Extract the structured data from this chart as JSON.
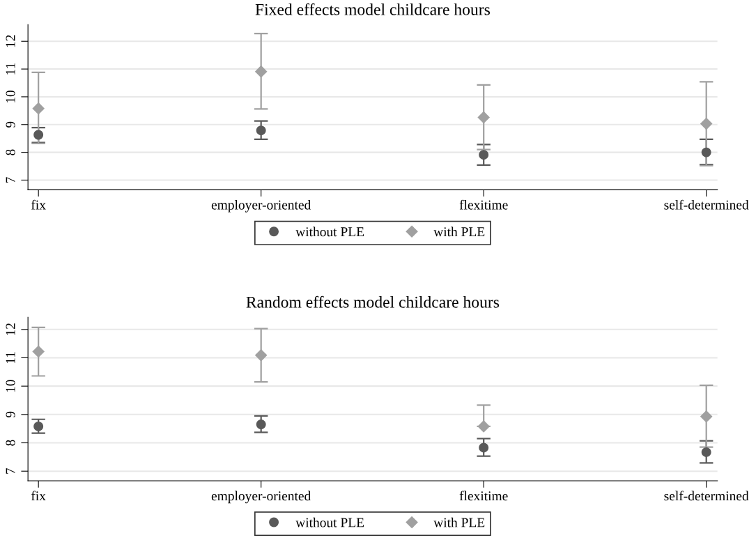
{
  "chart_data": [
    {
      "type": "scatter",
      "title": "Fixed effects model childcare hours",
      "categories": [
        "fix",
        "employer-oriented",
        "flexitime",
        "self-determined"
      ],
      "ylim": [
        6.65,
        12.6
      ],
      "yticks": [
        7,
        8,
        9,
        10,
        11,
        12
      ],
      "grid": "y",
      "legend": "bottom",
      "series": [
        {
          "name": "without PLE",
          "color": "#595959",
          "marker": "circle",
          "values": [
            8.63,
            8.79,
            7.91,
            8.0
          ],
          "errors": [
            [
              8.35,
              8.89
            ],
            [
              8.47,
              9.13
            ],
            [
              7.54,
              8.28
            ],
            [
              7.56,
              8.47
            ]
          ]
        },
        {
          "name": "with PLE",
          "color": "#a0a0a0",
          "marker": "diamond",
          "values": [
            9.58,
            10.91,
            9.26,
            9.03
          ],
          "errors": [
            [
              8.32,
              10.88
            ],
            [
              9.56,
              12.28
            ],
            [
              8.1,
              10.43
            ],
            [
              7.52,
              10.54
            ]
          ]
        }
      ]
    },
    {
      "type": "scatter",
      "title": "Random effects model childcare hours",
      "categories": [
        "fix",
        "employer-oriented",
        "flexitime",
        "self-determined"
      ],
      "ylim": [
        6.66,
        12.43
      ],
      "yticks": [
        7,
        8,
        9,
        10,
        11,
        12
      ],
      "grid": "y",
      "legend": "bottom",
      "series": [
        {
          "name": "without PLE",
          "color": "#595959",
          "marker": "circle",
          "values": [
            8.58,
            8.65,
            7.83,
            7.67
          ],
          "errors": [
            [
              8.34,
              8.83
            ],
            [
              8.37,
              8.95
            ],
            [
              7.53,
              8.15
            ],
            [
              7.29,
              8.07
            ]
          ]
        },
        {
          "name": "with PLE",
          "color": "#a0a0a0",
          "marker": "diamond",
          "values": [
            11.22,
            11.09,
            8.58,
            8.93
          ],
          "errors": [
            [
              10.36,
              12.07
            ],
            [
              10.15,
              12.03
            ],
            [
              8.58,
              9.33
            ],
            [
              7.85,
              10.03
            ]
          ]
        }
      ]
    }
  ]
}
